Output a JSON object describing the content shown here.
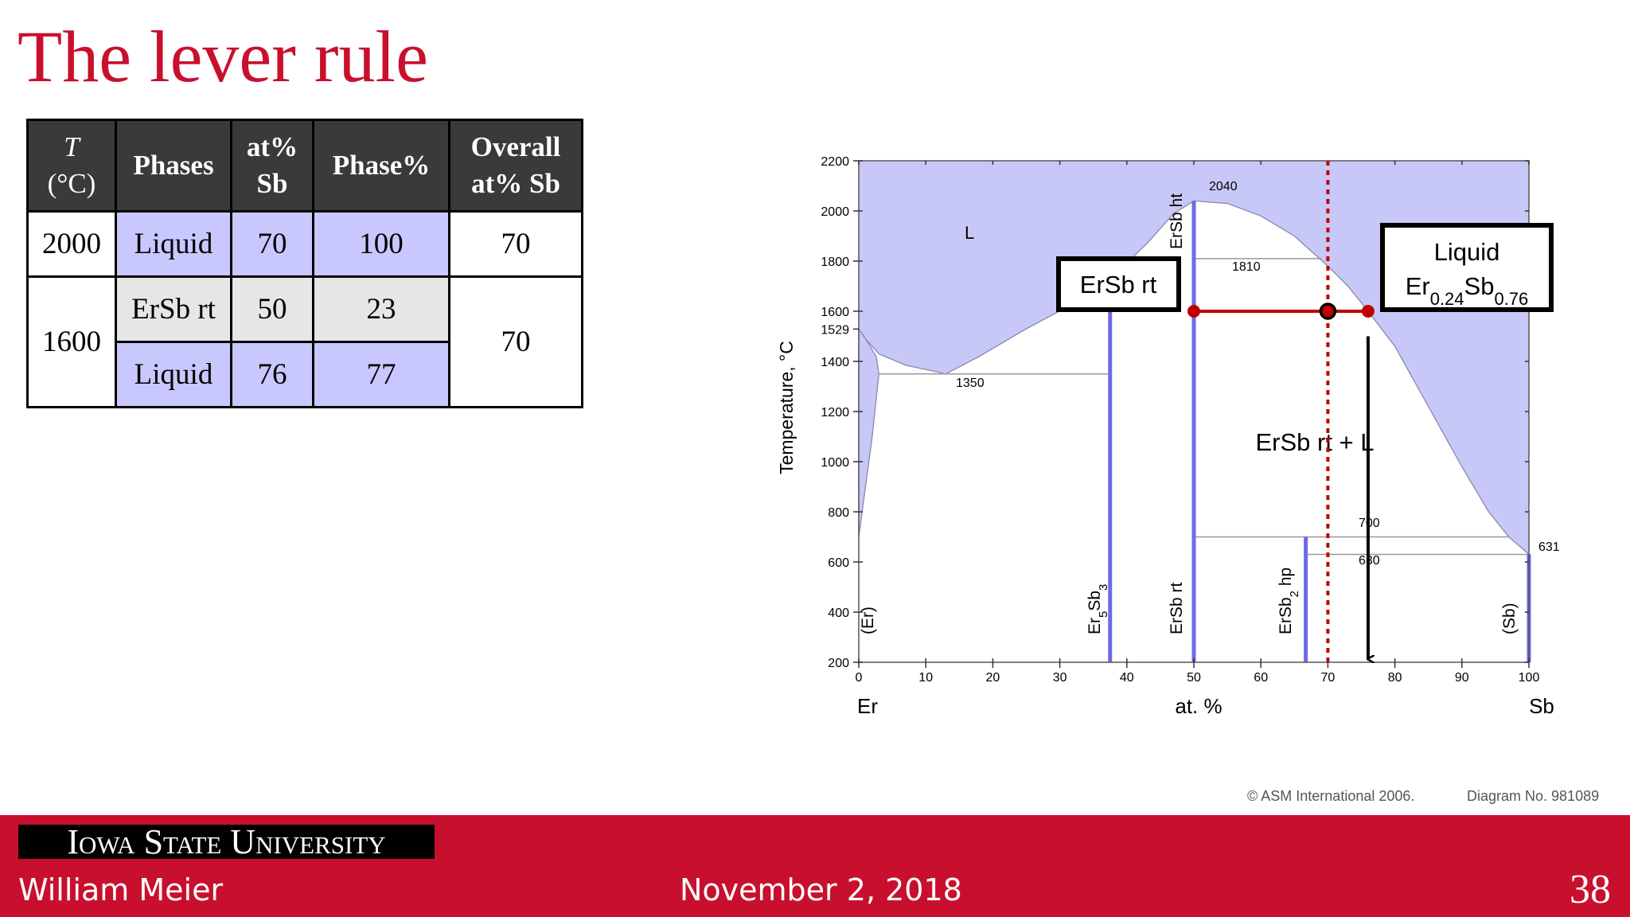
{
  "title": "The lever rule",
  "table": {
    "header": [
      [
        "T",
        "(°C)"
      ],
      [
        "Phases"
      ],
      [
        "at%",
        "Sb"
      ],
      [
        "Phase%"
      ],
      [
        "Overall",
        "at% Sb"
      ]
    ],
    "groups": [
      {
        "T": 2000,
        "overall": 70,
        "rows": [
          [
            "Liquid",
            70,
            100
          ]
        ]
      },
      {
        "T": 1600,
        "overall": 70,
        "rows": [
          [
            "ErSb rt",
            50,
            23
          ],
          [
            "Liquid",
            76,
            77
          ]
        ]
      }
    ]
  },
  "diagram": {
    "y_label": "Temperature, °C",
    "x_label": "at. %",
    "x_left": "Er",
    "x_right": "Sb",
    "xlim": [
      0,
      100
    ],
    "ylim": [
      200,
      2200
    ],
    "xticks": [
      0,
      10,
      20,
      30,
      40,
      50,
      60,
      70,
      80,
      90,
      100
    ],
    "yticks": [
      200,
      400,
      600,
      800,
      1000,
      1200,
      1400,
      1600,
      1800,
      2000,
      2200
    ],
    "ytick_extra": 1529,
    "region_labels": [
      "L",
      "ErSb rt + L"
    ],
    "phase_labels": [
      [
        "(Er)"
      ],
      [
        "Er",
        "5",
        "Sb",
        "3"
      ],
      [
        "ErSb rt"
      ],
      [
        "ErSb",
        "2",
        " hp"
      ],
      [
        "(Sb)"
      ],
      [
        "ErSb ht"
      ]
    ],
    "isotherms": [
      2040,
      1810,
      1350,
      700,
      630,
      631
    ],
    "box_solid": "ErSb rt",
    "box_liquid": "Liquid",
    "box_formula": [
      "Er",
      "0.24",
      "Sb",
      "0.76"
    ],
    "copyright": "© ASM International 2006.",
    "diagram_no": "Diagram No. 981089"
  },
  "footer": {
    "university": "Iowa State University",
    "author": "William Meier",
    "date": "November 2, 2018",
    "page": 38
  }
}
